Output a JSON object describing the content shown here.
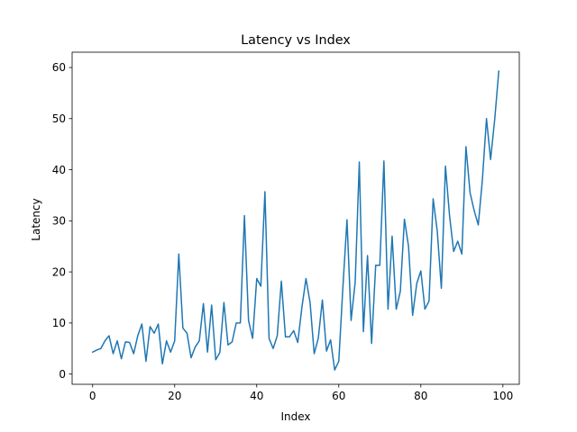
{
  "chart_data": {
    "type": "line",
    "title": "Latency vs Index",
    "xlabel": "Index",
    "ylabel": "Latency",
    "xlim": [
      -5,
      104
    ],
    "ylim": [
      -2,
      63
    ],
    "xticks": [
      0,
      20,
      40,
      60,
      80,
      100
    ],
    "yticks": [
      0,
      10,
      20,
      30,
      40,
      50,
      60
    ],
    "grid": false,
    "colors": {
      "line": "#1f77b4",
      "axis": "#000000"
    },
    "series": [
      {
        "x": [
          0,
          1,
          2,
          3,
          4,
          5,
          6,
          7,
          8,
          9,
          10,
          11,
          12,
          13,
          14,
          15,
          16,
          17,
          18,
          19,
          20,
          21,
          22,
          23,
          24,
          25,
          26,
          27,
          28,
          29,
          30,
          31,
          32,
          33,
          34,
          35,
          36,
          37,
          38,
          39,
          40,
          41,
          42,
          43,
          44,
          45,
          46,
          47,
          48,
          49,
          50,
          51,
          52,
          53,
          54,
          55,
          56,
          57,
          58,
          59,
          60,
          61,
          62,
          63,
          64,
          65,
          66,
          67,
          68,
          69,
          70,
          71,
          72,
          73,
          74,
          75,
          76,
          77,
          78,
          79,
          80,
          81,
          82,
          83,
          84,
          85,
          86,
          87,
          88,
          89,
          90,
          91,
          92,
          93,
          94,
          95,
          96,
          97,
          98,
          99
        ],
        "values": [
          4.3,
          4.7,
          5.0,
          6.5,
          7.5,
          4.0,
          6.5,
          3.0,
          6.3,
          6.2,
          4.0,
          7.5,
          9.8,
          2.5,
          9.3,
          8.0,
          9.8,
          2.0,
          6.5,
          4.3,
          6.5,
          23.5,
          9.0,
          8.0,
          3.2,
          5.3,
          6.5,
          13.8,
          4.3,
          13.5,
          2.8,
          4.2,
          14.0,
          5.7,
          6.3,
          10.0,
          10.0,
          31.0,
          10.5,
          7.0,
          18.7,
          17.2,
          35.7,
          7.0,
          5.0,
          7.5,
          18.2,
          7.3,
          7.3,
          8.5,
          6.2,
          13.0,
          18.7,
          14.0,
          4.0,
          7.0,
          14.5,
          4.5,
          6.7,
          0.8,
          2.5,
          17.0,
          30.2,
          10.5,
          18.0,
          41.5,
          8.3,
          23.2,
          6.0,
          21.3,
          21.3,
          41.7,
          12.7,
          27.0,
          12.7,
          16.2,
          30.3,
          25.0,
          11.5,
          17.7,
          20.2,
          12.7,
          14.3,
          34.3,
          28.0,
          16.8,
          40.7,
          31.0,
          24.0,
          26.0,
          23.5,
          44.5,
          35.5,
          32.0,
          29.2,
          38.0,
          50.0,
          42.0,
          49.8,
          59.3
        ]
      }
    ]
  }
}
